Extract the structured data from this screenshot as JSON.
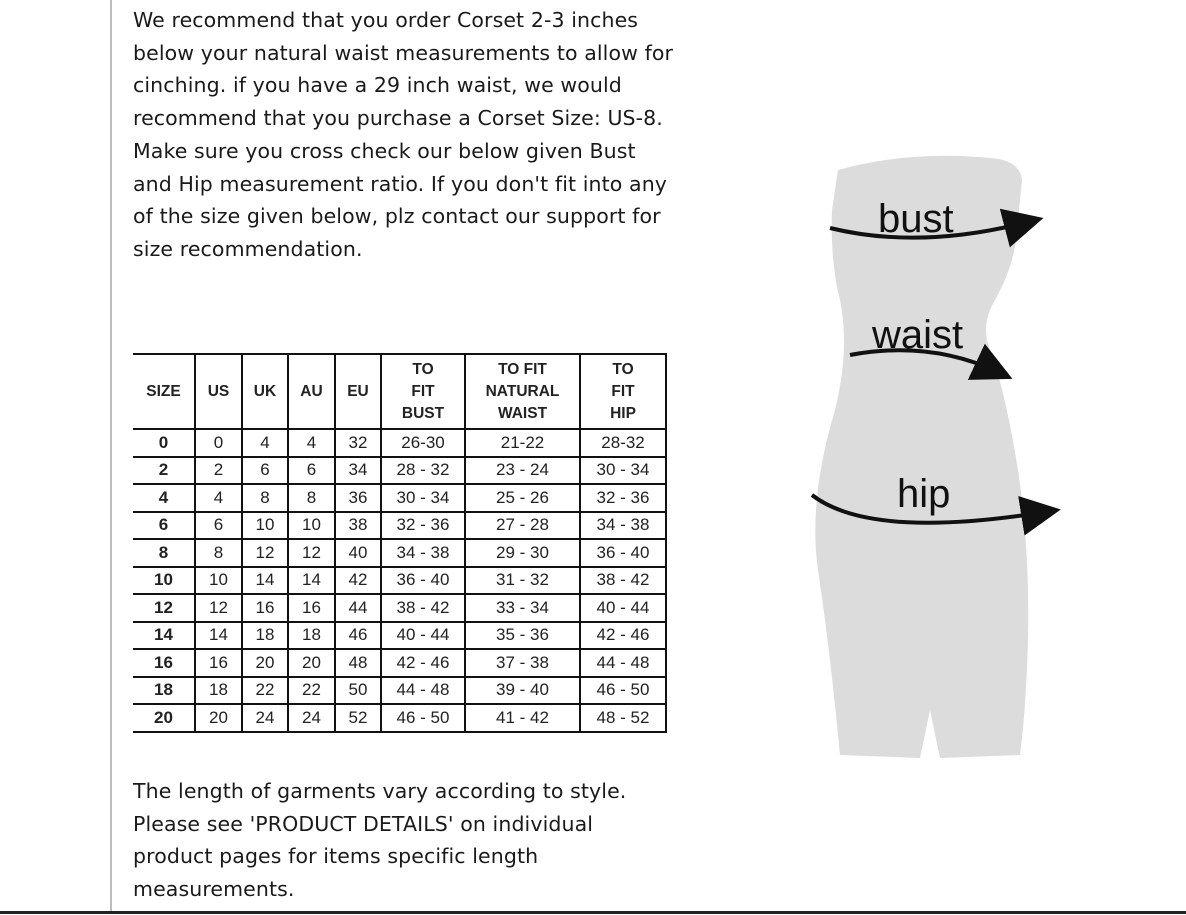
{
  "intro_text": "We recommend that you order Corset 2-3 inches below your natural waist measurements to allow for cinching. if you have a 29 inch waist, we would recommend that you purchase a Corset Size: US-8. Make sure you cross check our below given Bust and Hip measurement ratio. If you don't fit into any of the size given below, plz contact our support for size recommendation.",
  "size_table": {
    "headers": [
      "SIZE",
      "US",
      "UK",
      "AU",
      "EU",
      "TO FIT BUST",
      "TO FIT NATURAL WAIST",
      "TO FIT HIP"
    ],
    "rows": [
      [
        "0",
        "0",
        "4",
        "4",
        "32",
        "26-30",
        "21-22",
        "28-32"
      ],
      [
        "2",
        "2",
        "6",
        "6",
        "34",
        "28 - 32",
        "23 - 24",
        "30 - 34"
      ],
      [
        "4",
        "4",
        "8",
        "8",
        "36",
        "30 - 34",
        "25 - 26",
        "32 - 36"
      ],
      [
        "6",
        "6",
        "10",
        "10",
        "38",
        "32 - 36",
        "27 - 28",
        "34 - 38"
      ],
      [
        "8",
        "8",
        "12",
        "12",
        "40",
        "34 - 38",
        "29 - 30",
        "36 - 40"
      ],
      [
        "10",
        "10",
        "14",
        "14",
        "42",
        "36 - 40",
        "31 - 32",
        "38 - 42"
      ],
      [
        "12",
        "12",
        "16",
        "16",
        "44",
        "38 - 42",
        "33 - 34",
        "40 - 44"
      ],
      [
        "14",
        "14",
        "18",
        "18",
        "46",
        "40 - 44",
        "35 - 36",
        "42 - 46"
      ],
      [
        "16",
        "16",
        "20",
        "20",
        "48",
        "42 - 46",
        "37 - 38",
        "44 - 48"
      ],
      [
        "18",
        "18",
        "22",
        "22",
        "50",
        "44 - 48",
        "39 - 40",
        "46 - 50"
      ],
      [
        "20",
        "20",
        "24",
        "24",
        "52",
        "46 - 50",
        "41 - 42",
        "48 - 52"
      ]
    ]
  },
  "outro_text": "The length of garments vary according to style. Please see 'PRODUCT DETAILS'  on individual product pages for items specific length measurements.",
  "figure": {
    "labels": {
      "bust": "bust",
      "waist": "waist",
      "hip": "hip"
    },
    "body_color": "#dcdcdc"
  }
}
